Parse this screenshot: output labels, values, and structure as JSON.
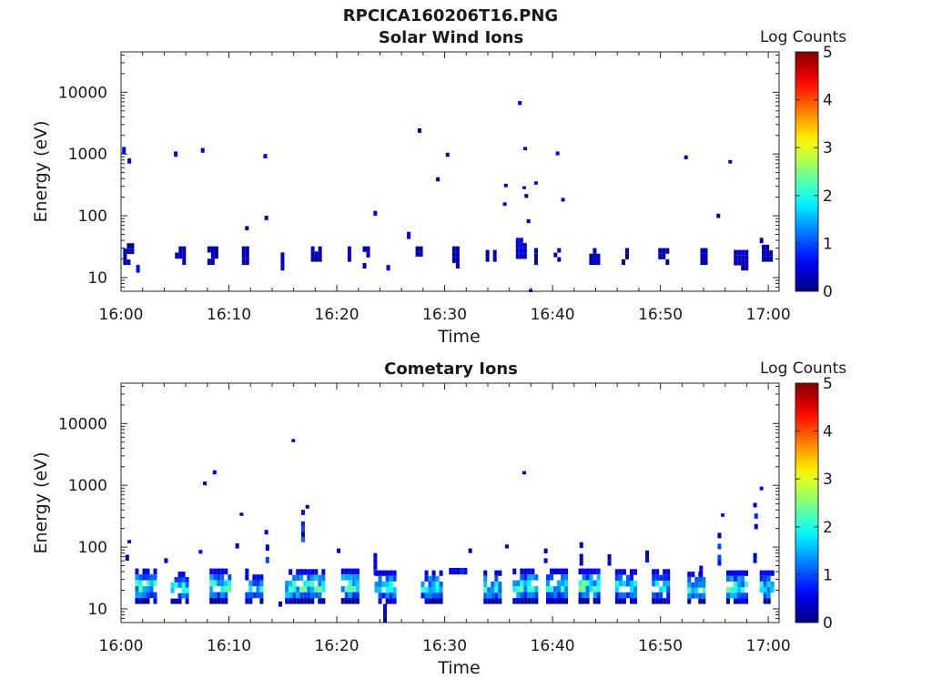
{
  "page": {
    "title": "RPCICA160206T16.PNG"
  },
  "chart_data": [
    {
      "type": "heatmap",
      "title": "Solar Wind Ions",
      "xlabel": "Time",
      "ylabel": "Energy (eV)",
      "x_ticks": [
        "16:00",
        "16:10",
        "16:20",
        "16:30",
        "16:40",
        "16:50",
        "17:00"
      ],
      "y_ticks": [
        "10",
        "100",
        "1000",
        "10000"
      ],
      "y_scale": "log",
      "ylim": [
        6,
        45000
      ],
      "xlim": [
        "16:00",
        "17:01"
      ],
      "colorbar": {
        "label": "Log Counts",
        "min": 0,
        "max": 5,
        "ticks": [
          "0",
          "1",
          "2",
          "3",
          "4",
          "5"
        ],
        "colormap": "jet"
      },
      "clusters": [
        {
          "t": 0.1,
          "w": 0.25,
          "e": [
            1000,
            1300
          ],
          "c": 0.15
        },
        {
          "t": 0.6,
          "w": 0.12,
          "e": [
            700,
            850
          ],
          "c": 0.1
        },
        {
          "t": 0.2,
          "w": 1.0,
          "e": [
            16,
            36
          ],
          "c": 0.05
        },
        {
          "t": 1.4,
          "w": 0.2,
          "e": [
            12,
            16
          ],
          "c": 0.1
        },
        {
          "t": 4.9,
          "w": 0.2,
          "e": [
            900,
            1100
          ],
          "c": 0.1
        },
        {
          "t": 5.0,
          "w": 1.0,
          "e": [
            16,
            32
          ],
          "c": 0.05
        },
        {
          "t": 7.4,
          "w": 0.2,
          "e": [
            1050,
            1250
          ],
          "c": 0.1
        },
        {
          "t": 8.0,
          "w": 1.0,
          "e": [
            16,
            32
          ],
          "c": 0.05
        },
        {
          "t": 11.5,
          "w": 0.2,
          "e": [
            58,
            68
          ],
          "c": 0.1
        },
        {
          "t": 11.2,
          "w": 0.8,
          "e": [
            16,
            32
          ],
          "c": 0.05
        },
        {
          "t": 13.3,
          "w": 0.15,
          "e": [
            85,
            100
          ],
          "c": 0.1
        },
        {
          "t": 13.2,
          "w": 0.12,
          "e": [
            850,
            1000
          ],
          "c": 0.1
        },
        {
          "t": 14.8,
          "w": 0.4,
          "e": [
            13,
            32
          ],
          "c": 0.05
        },
        {
          "t": 17.6,
          "w": 1.0,
          "e": [
            18,
            32
          ],
          "c": 0.05
        },
        {
          "t": 21.0,
          "w": 0.4,
          "e": [
            18,
            32
          ],
          "c": 0.05
        },
        {
          "t": 23.4,
          "w": 0.12,
          "e": [
            100,
            120
          ],
          "c": 0.1
        },
        {
          "t": 22.4,
          "w": 0.8,
          "e": [
            14,
            32
          ],
          "c": 0.05
        },
        {
          "t": 24.6,
          "w": 0.3,
          "e": [
            13,
            24
          ],
          "c": 0.05
        },
        {
          "t": 26.5,
          "w": 0.15,
          "e": [
            42,
            55
          ],
          "c": 0.1
        },
        {
          "t": 27.5,
          "w": 0.2,
          "e": [
            2200,
            2600
          ],
          "c": 0.1
        },
        {
          "t": 27.3,
          "w": 0.8,
          "e": [
            18,
            32
          ],
          "c": 0.05
        },
        {
          "t": 29.2,
          "w": 0.2,
          "e": [
            360,
            420
          ],
          "c": 0.1
        },
        {
          "t": 30.1,
          "w": 0.1,
          "e": [
            900,
            1050
          ],
          "c": 0.1
        },
        {
          "t": 30.7,
          "w": 0.8,
          "e": [
            14,
            32
          ],
          "c": 0.05
        },
        {
          "t": 33.8,
          "w": 1.0,
          "e": [
            18,
            28
          ],
          "c": 0.05
        },
        {
          "t": 35.5,
          "w": 0.15,
          "e": [
            290,
            330
          ],
          "c": 0.1
        },
        {
          "t": 35.4,
          "w": 0.15,
          "e": [
            145,
            165
          ],
          "c": 0.1
        },
        {
          "t": 36.8,
          "w": 0.15,
          "e": [
            6200,
            7200
          ],
          "c": 0.1
        },
        {
          "t": 37.3,
          "w": 0.15,
          "e": [
            1150,
            1300
          ],
          "c": 0.1
        },
        {
          "t": 37.2,
          "w": 0.2,
          "e": [
            270,
            300
          ],
          "c": 0.1
        },
        {
          "t": 37.4,
          "w": 0.2,
          "e": [
            195,
            225
          ],
          "c": 0.1
        },
        {
          "t": 38.3,
          "w": 0.15,
          "e": [
            320,
            360
          ],
          "c": 0.1
        },
        {
          "t": 37.6,
          "w": 0.2,
          "e": [
            76,
            88
          ],
          "c": 0.1
        },
        {
          "t": 36.6,
          "w": 1.1,
          "e": [
            20,
            44
          ],
          "c": 0.1
        },
        {
          "t": 37.8,
          "w": 0.2,
          "e": [
            5.8,
            6.5
          ],
          "c": 0.1
        },
        {
          "t": 38.3,
          "w": 0.4,
          "e": [
            16,
            30
          ],
          "c": 0.05
        },
        {
          "t": 40.3,
          "w": 0.15,
          "e": [
            950,
            1100
          ],
          "c": 0.1
        },
        {
          "t": 40.8,
          "w": 0.2,
          "e": [
            170,
            195
          ],
          "c": 0.1
        },
        {
          "t": 40.1,
          "w": 0.8,
          "e": [
            18,
            30
          ],
          "c": 0.05
        },
        {
          "t": 43.4,
          "w": 0.9,
          "e": [
            16,
            30
          ],
          "c": 0.05
        },
        {
          "t": 46.4,
          "w": 0.8,
          "e": [
            16,
            30
          ],
          "c": 0.05
        },
        {
          "t": 49.8,
          "w": 1.0,
          "e": [
            16,
            30
          ],
          "c": 0.05
        },
        {
          "t": 52.2,
          "w": 0.12,
          "e": [
            820,
            950
          ],
          "c": 0.1
        },
        {
          "t": 53.7,
          "w": 0.8,
          "e": [
            16,
            30
          ],
          "c": 0.05
        },
        {
          "t": 55.2,
          "w": 0.15,
          "e": [
            92,
            108
          ],
          "c": 0.1
        },
        {
          "t": 56.3,
          "w": 0.15,
          "e": [
            700,
            800
          ],
          "c": 0.1
        },
        {
          "t": 56.8,
          "w": 1.2,
          "e": [
            13,
            28
          ],
          "c": 0.05
        },
        {
          "t": 59.2,
          "w": 0.2,
          "e": [
            36,
            44
          ],
          "c": 0.1
        },
        {
          "t": 59.4,
          "w": 1.0,
          "e": [
            18,
            34
          ],
          "c": 0.05
        }
      ]
    },
    {
      "type": "heatmap",
      "title": "Cometary Ions",
      "xlabel": "Time",
      "ylabel": "Energy (eV)",
      "x_ticks": [
        "16:00",
        "16:10",
        "16:20",
        "16:30",
        "16:40",
        "16:50",
        "17:00"
      ],
      "y_ticks": [
        "10",
        "100",
        "1000",
        "10000"
      ],
      "y_scale": "log",
      "ylim": [
        6,
        45000
      ],
      "xlim": [
        "16:00",
        "17:01"
      ],
      "colorbar": {
        "label": "Log Counts",
        "min": 0,
        "max": 5,
        "ticks": [
          "0",
          "1",
          "2",
          "3",
          "4",
          "5"
        ],
        "colormap": "jet"
      },
      "clusters": [
        {
          "t": 0.6,
          "w": 0.15,
          "e": [
            115,
            130
          ],
          "c": 0.1
        },
        {
          "t": 0.4,
          "w": 0.4,
          "e": [
            60,
            75
          ],
          "c": 0.1
        },
        {
          "t": 1.3,
          "w": 2.2,
          "e": [
            12,
            45
          ],
          "c": 0.9
        },
        {
          "t": 4.0,
          "w": 0.15,
          "e": [
            55,
            66
          ],
          "c": 0.1
        },
        {
          "t": 4.6,
          "w": 1.8,
          "e": [
            12,
            40
          ],
          "c": 0.75
        },
        {
          "t": 7.2,
          "w": 0.15,
          "e": [
            78,
            90
          ],
          "c": 0.1
        },
        {
          "t": 7.6,
          "w": 0.15,
          "e": [
            1000,
            1150
          ],
          "c": 0.1
        },
        {
          "t": 8.5,
          "w": 0.25,
          "e": [
            1500,
            1750
          ],
          "c": 0.1
        },
        {
          "t": 8.2,
          "w": 2.0,
          "e": [
            12,
            45
          ],
          "c": 0.85
        },
        {
          "t": 10.6,
          "w": 0.15,
          "e": [
            95,
            115
          ],
          "c": 0.1
        },
        {
          "t": 11.0,
          "w": 0.15,
          "e": [
            320,
            360
          ],
          "c": 0.1
        },
        {
          "t": 11.5,
          "w": 0.2,
          "e": [
            36,
            45
          ],
          "c": 0.1
        },
        {
          "t": 11.5,
          "w": 1.8,
          "e": [
            12,
            36
          ],
          "c": 0.7
        },
        {
          "t": 13.3,
          "w": 0.15,
          "e": [
            160,
            190
          ],
          "c": 0.1
        },
        {
          "t": 13.4,
          "w": 0.3,
          "e": [
            55,
            110
          ],
          "c": 0.2
        },
        {
          "t": 14.6,
          "w": 0.25,
          "e": [
            6,
            16
          ],
          "c": 0.1
        },
        {
          "t": 15.8,
          "w": 0.2,
          "e": [
            5000,
            5600
          ],
          "c": 0.1
        },
        {
          "t": 16.7,
          "w": 0.2,
          "e": [
            330,
            400
          ],
          "c": 0.1
        },
        {
          "t": 16.7,
          "w": 0.25,
          "e": [
            120,
            260
          ],
          "c": 0.2
        },
        {
          "t": 17.1,
          "w": 0.15,
          "e": [
            420,
            480
          ],
          "c": 0.1
        },
        {
          "t": 15.2,
          "w": 3.8,
          "e": [
            12,
            44
          ],
          "c": 0.95
        },
        {
          "t": 20.0,
          "w": 0.15,
          "e": [
            80,
            95
          ],
          "c": 0.1
        },
        {
          "t": 20.4,
          "w": 1.6,
          "e": [
            12,
            45
          ],
          "c": 0.9
        },
        {
          "t": 23.4,
          "w": 0.3,
          "e": [
            35,
            80
          ],
          "c": 0.2
        },
        {
          "t": 24.3,
          "w": 0.3,
          "e": [
            6,
            12
          ],
          "c": 0.1
        },
        {
          "t": 23.5,
          "w": 2.2,
          "e": [
            12,
            42
          ],
          "c": 0.8
        },
        {
          "t": 27.8,
          "w": 2.0,
          "e": [
            12,
            42
          ],
          "c": 0.8
        },
        {
          "t": 32.2,
          "w": 0.15,
          "e": [
            80,
            95
          ],
          "c": 0.1
        },
        {
          "t": 30.4,
          "w": 2.0,
          "e": [
            36,
            46
          ],
          "c": 0.2
        },
        {
          "t": 33.6,
          "w": 1.8,
          "e": [
            12,
            42
          ],
          "c": 0.85
        },
        {
          "t": 35.6,
          "w": 0.5,
          "e": [
            95,
            110
          ],
          "c": 0.1
        },
        {
          "t": 37.2,
          "w": 0.2,
          "e": [
            1500,
            1700
          ],
          "c": 0.1
        },
        {
          "t": 36.3,
          "w": 2.4,
          "e": [
            12,
            45
          ],
          "c": 0.9
        },
        {
          "t": 39.2,
          "w": 0.5,
          "e": [
            55,
            95
          ],
          "c": 0.1
        },
        {
          "t": 39.4,
          "w": 2.2,
          "e": [
            12,
            45
          ],
          "c": 0.85
        },
        {
          "t": 42.5,
          "w": 0.3,
          "e": [
            50,
            120
          ],
          "c": 0.1
        },
        {
          "t": 42.4,
          "w": 2.1,
          "e": [
            12,
            45
          ],
          "c": 0.95
        },
        {
          "t": 45.1,
          "w": 0.3,
          "e": [
            50,
            95
          ],
          "c": 0.1
        },
        {
          "t": 45.8,
          "w": 2.0,
          "e": [
            12,
            44
          ],
          "c": 0.8
        },
        {
          "t": 48.6,
          "w": 0.3,
          "e": [
            45,
            110
          ],
          "c": 0.1
        },
        {
          "t": 49.2,
          "w": 1.6,
          "e": [
            12,
            44
          ],
          "c": 0.7
        },
        {
          "t": 53.6,
          "w": 0.3,
          "e": [
            30,
            50
          ],
          "c": 0.1
        },
        {
          "t": 52.5,
          "w": 1.8,
          "e": [
            12,
            40
          ],
          "c": 0.8
        },
        {
          "t": 55.6,
          "w": 0.2,
          "e": [
            310,
            350
          ],
          "c": 0.1
        },
        {
          "t": 55.3,
          "w": 0.3,
          "e": [
            50,
            170
          ],
          "c": 0.2
        },
        {
          "t": 56.1,
          "w": 2.2,
          "e": [
            12,
            42
          ],
          "c": 0.9
        },
        {
          "t": 58.6,
          "w": 0.2,
          "e": [
            440,
            520
          ],
          "c": 0.1
        },
        {
          "t": 59.2,
          "w": 0.15,
          "e": [
            830,
            950
          ],
          "c": 0.1
        },
        {
          "t": 58.7,
          "w": 0.2,
          "e": [
            160,
            350
          ],
          "c": 0.2
        },
        {
          "t": 58.6,
          "w": 0.3,
          "e": [
            55,
            80
          ],
          "c": 0.1
        },
        {
          "t": 59.2,
          "w": 1.4,
          "e": [
            12,
            42
          ],
          "c": 0.8
        }
      ]
    }
  ]
}
